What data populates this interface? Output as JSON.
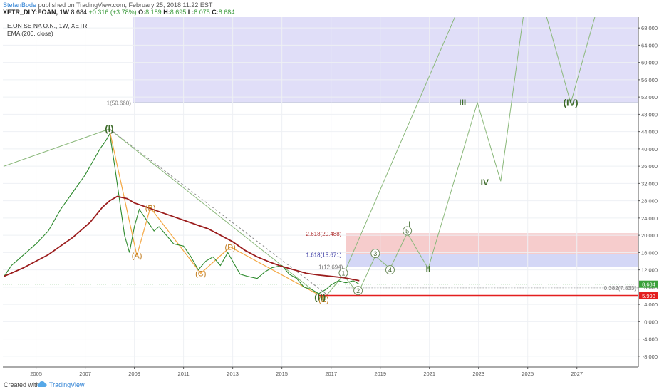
{
  "header": {
    "author": "StefanBode",
    "published": "published on TradingView.com, February 25, 2018 11:22 EST",
    "symbol": "XETR_DLY:EOAN, 1W",
    "last": "8.684",
    "change": "+0.316 (+3.78%)",
    "o_label": "O:",
    "o_value": "8.189",
    "h_label": "H:",
    "h_value": "8.695",
    "l_label": "L:",
    "l_value": "8.075",
    "c_label": "C:",
    "c_value": "8.684"
  },
  "legend": {
    "symbol_line": "E.ON SE NA O.N., 1W, XETR",
    "ema_line": "EMA (200, close)"
  },
  "footer": {
    "created_with": "Created with",
    "brand": "TradingView"
  },
  "colors": {
    "price": "#2d8a2d",
    "ema": "#9b1c1c",
    "wave_line": "#8ab87a",
    "abc_line": "#f4a742",
    "wave_text": "#3d6b2a",
    "abc_text": "#c07a1c",
    "target_box": "#dddaf7",
    "red_box": "#f5c6c6",
    "blue_box": "#cfd3f5",
    "support_line": "#e31e1e",
    "tv_blue": "#2a7fd4"
  },
  "chart_data": {
    "type": "line",
    "x_ticks": [
      "2005",
      "2007",
      "2009",
      "2011",
      "2013",
      "2015",
      "2017",
      "2019",
      "2021",
      "2023",
      "2025",
      "2027"
    ],
    "y_ticks": [
      "68.000",
      "64.000",
      "60.000",
      "56.000",
      "52.000",
      "48.000",
      "44.000",
      "40.000",
      "36.000",
      "32.000",
      "28.000",
      "24.000",
      "20.000",
      "16.000",
      "12.000",
      "8.000",
      "4.000",
      "0.000",
      "-4.000",
      "-8.000"
    ],
    "ylim": [
      -10.5,
      70.5
    ],
    "xlim": [
      2003.65,
      2029.5
    ],
    "series": [
      {
        "name": "XETR_DLY:EOAN",
        "x": [
          2003.7,
          2004.0,
          2004.5,
          2005.0,
          2005.5,
          2006.0,
          2006.5,
          2007.0,
          2007.3,
          2007.6,
          2007.85,
          2008.0,
          2008.2,
          2008.4,
          2008.6,
          2008.8,
          2009.0,
          2009.2,
          2009.5,
          2009.8,
          2010.0,
          2010.3,
          2010.6,
          2011.0,
          2011.3,
          2011.6,
          2011.9,
          2012.2,
          2012.5,
          2012.8,
          2013.0,
          2013.3,
          2013.6,
          2014.0,
          2014.3,
          2014.6,
          2015.0,
          2015.3,
          2015.6,
          2015.9,
          2016.2,
          2016.5,
          2016.8,
          2017.0,
          2017.3,
          2017.6,
          2017.9,
          2018.15
        ],
        "values": [
          10.5,
          13.0,
          15.5,
          18.0,
          21.0,
          26.0,
          30.0,
          34.0,
          37.0,
          40.0,
          42.0,
          43.5,
          36.0,
          28.0,
          20.0,
          16.0,
          22.0,
          26.0,
          23.5,
          21.0,
          22.0,
          20.0,
          18.0,
          17.5,
          15.0,
          12.0,
          14.0,
          15.0,
          13.0,
          16.0,
          14.0,
          11.0,
          10.5,
          10.0,
          11.5,
          12.5,
          13.0,
          11.0,
          10.0,
          8.0,
          7.5,
          6.5,
          7.5,
          8.5,
          9.5,
          9.0,
          9.5,
          8.684
        ]
      },
      {
        "name": "EMA (200, close)",
        "x": [
          2003.7,
          2004.5,
          2005.5,
          2006.5,
          2007.2,
          2007.7,
          2008.0,
          2008.3,
          2008.7,
          2009.0,
          2009.5,
          2010.0,
          2010.5,
          2011.0,
          2011.5,
          2012.0,
          2012.5,
          2013.0,
          2013.5,
          2014.0,
          2014.5,
          2015.0,
          2015.5,
          2016.0,
          2016.5,
          2017.0,
          2017.5,
          2018.15
        ],
        "values": [
          10.5,
          12.5,
          15.5,
          19.5,
          23.0,
          26.5,
          28.0,
          29.0,
          28.5,
          27.5,
          26.5,
          25.5,
          24.5,
          23.5,
          22.5,
          21.5,
          20.0,
          18.5,
          16.5,
          15.0,
          13.8,
          12.8,
          12.0,
          11.2,
          10.8,
          10.5,
          10.2,
          9.5
        ]
      }
    ],
    "ohlc_last": {
      "open": 8.189,
      "high": 8.695,
      "low": 8.075,
      "close": 8.684,
      "change": 0.316,
      "change_pct": 3.78
    }
  },
  "annotations": {
    "target_level_label": "1(50.660)",
    "target_level_value": 50.66,
    "fib_2618_label": "2.618(20.488)",
    "fib_2618_value": 20.488,
    "fib_1618_label": "1.618(15.671)",
    "fib_1618_value": 15.671,
    "fib_1_label": "1(12.694)",
    "fib_1_value": 12.694,
    "fib_0382_label": "0.382(7.833)",
    "fib_0382_value": 7.833,
    "current_price_badge": "8.684",
    "current_price_value": 8.684,
    "support_badge": "5.993",
    "support_value": 5.993,
    "waves": [
      {
        "label": "(I)",
        "x": 2007.98,
        "y": 44.6,
        "style": "primary"
      },
      {
        "label": "(A)",
        "x": 2009.1,
        "y": 15.3,
        "style": "abc"
      },
      {
        "label": "(B)",
        "x": 2009.65,
        "y": 26.4,
        "style": "abc"
      },
      {
        "label": "(C)",
        "x": 2011.7,
        "y": 11.2,
        "style": "abc"
      },
      {
        "label": "(D)",
        "x": 2012.9,
        "y": 17.3,
        "style": "abc"
      },
      {
        "label": "(E)",
        "x": 2016.7,
        "y": 5.2,
        "style": "abc"
      },
      {
        "label": "(II)",
        "x": 2016.55,
        "y": 5.6,
        "style": "primary"
      },
      {
        "label": "1",
        "x": 2017.5,
        "y": 11.3,
        "style": "circle"
      },
      {
        "label": "2",
        "x": 2018.1,
        "y": 7.2,
        "style": "circle"
      },
      {
        "label": "3",
        "x": 2018.8,
        "y": 15.8,
        "style": "circle"
      },
      {
        "label": "4",
        "x": 2019.4,
        "y": 12.0,
        "style": "circle"
      },
      {
        "label": "5",
        "x": 2020.1,
        "y": 21.0,
        "style": "circle"
      },
      {
        "label": "I",
        "x": 2020.2,
        "y": 22.5,
        "style": "secondary"
      },
      {
        "label": "II",
        "x": 2020.95,
        "y": 12.2,
        "style": "secondary"
      },
      {
        "label": "III",
        "x": 2022.35,
        "y": 50.7,
        "style": "secondary"
      },
      {
        "label": "IV",
        "x": 2023.25,
        "y": 32.2,
        "style": "secondary"
      },
      {
        "label": "(IV)",
        "x": 2026.75,
        "y": 50.6,
        "style": "primary"
      }
    ]
  }
}
